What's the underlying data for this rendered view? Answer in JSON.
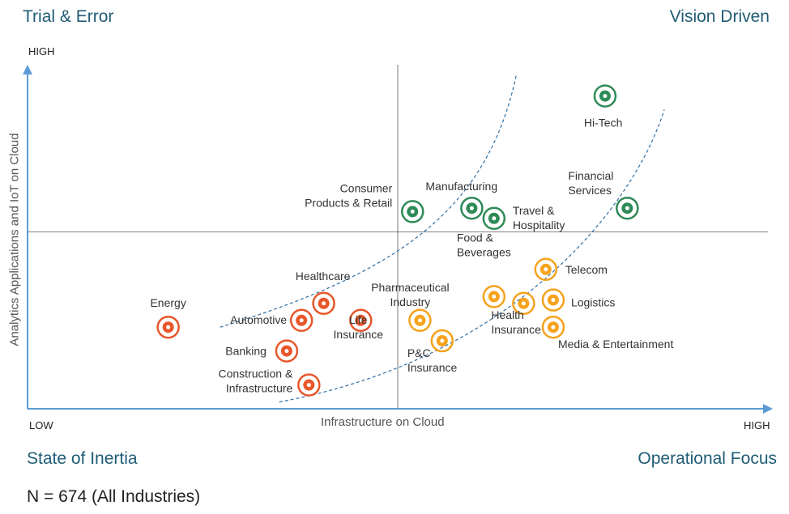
{
  "quadrants": {
    "top_left": "Trial & Error",
    "top_right": "Vision Driven",
    "bottom_left": "State of Inertia",
    "bottom_right": "Operational Focus"
  },
  "axes": {
    "y_label": "Analytics Applications and IoT on Cloud",
    "x_label": "Infrastructure on Cloud",
    "y_high": "HIGH",
    "x_low": "LOW",
    "x_high": "HIGH"
  },
  "footnote": "N = 674 (All Industries)",
  "colors": {
    "quadrant_title": "#1f5c75",
    "axis": "#5b9bd5",
    "low_group": "#e8562a",
    "mid_group": "#f6a21c",
    "high_group": "#2e8b57"
  },
  "chart_data": {
    "type": "scatter",
    "xlabel": "Infrastructure on Cloud",
    "ylabel": "Analytics Applications and IoT on Cloud",
    "xlim": [
      0,
      100
    ],
    "ylim": [
      0,
      100
    ],
    "points": [
      {
        "name": "Hi-Tech",
        "lines": [
          "Hi-Tech"
        ],
        "x": 78,
        "y": 92,
        "group": "high",
        "icon": "chip-icon"
      },
      {
        "name": "Financial Services",
        "lines": [
          "Financial",
          "Services"
        ],
        "x": 81,
        "y": 59,
        "group": "high",
        "icon": "calculator-icon"
      },
      {
        "name": "Consumer Products & Retail",
        "lines": [
          "Consumer",
          "Products & Retail"
        ],
        "x": 52,
        "y": 58,
        "group": "high",
        "icon": "shopping-cart-icon"
      },
      {
        "name": "Manufacturing",
        "lines": [
          "Manufacturing"
        ],
        "x": 60,
        "y": 59,
        "group": "high",
        "icon": "gear-bulb-icon"
      },
      {
        "name": "Travel & Hospitality",
        "lines": [
          "Travel &",
          "Hospitality"
        ],
        "x": 63,
        "y": 56,
        "group": "high",
        "icon": "luggage-icon"
      },
      {
        "name": "Telecom",
        "lines": [
          "Telecom"
        ],
        "x": 70,
        "y": 41,
        "group": "mid",
        "icon": "satellite-dish-icon"
      },
      {
        "name": "Food & Beverages",
        "lines": [
          "Food &",
          "Beverages"
        ],
        "x": 63,
        "y": 33,
        "group": "mid",
        "icon": "cloche-icon"
      },
      {
        "name": "Logistics",
        "lines": [
          "Logistics"
        ],
        "x": 71,
        "y": 32,
        "group": "mid",
        "icon": "truck-icon"
      },
      {
        "name": "Health Insurance",
        "lines": [
          "Health",
          "Insurance"
        ],
        "x": 67,
        "y": 31,
        "group": "mid",
        "icon": "shield-plus-icon"
      },
      {
        "name": "Media & Entertainment",
        "lines": [
          "Media & Entertainment"
        ],
        "x": 71,
        "y": 24,
        "group": "mid",
        "icon": "video-camera-icon"
      },
      {
        "name": "Pharmaceutical Industry",
        "lines": [
          "Pharmaceutical",
          "Industry"
        ],
        "x": 53,
        "y": 26,
        "group": "mid",
        "icon": "pill-icon"
      },
      {
        "name": "P&C Insurance",
        "lines": [
          "P&C",
          "Insurance"
        ],
        "x": 56,
        "y": 20,
        "group": "mid",
        "icon": "car-shield-icon"
      },
      {
        "name": "Energy",
        "lines": [
          "Energy"
        ],
        "x": 19,
        "y": 24,
        "group": "low",
        "icon": "energy-icon"
      },
      {
        "name": "Healthcare",
        "lines": [
          "Healthcare"
        ],
        "x": 40,
        "y": 31,
        "group": "low",
        "icon": "medical-plus-icon"
      },
      {
        "name": "Automotive",
        "lines": [
          "Automotive"
        ],
        "x": 37,
        "y": 26,
        "group": "low",
        "icon": "steering-wheel-icon"
      },
      {
        "name": "Life Insurance",
        "lines": [
          "Life",
          "Insurance"
        ],
        "x": 45,
        "y": 26,
        "group": "low",
        "icon": "umbrella-family-icon"
      },
      {
        "name": "Banking",
        "lines": [
          "Banking"
        ],
        "x": 35,
        "y": 17,
        "group": "low",
        "icon": "bank-icon"
      },
      {
        "name": "Construction & Infrastructure",
        "lines": [
          "Construction &",
          "Infrastructure"
        ],
        "x": 38,
        "y": 7,
        "group": "low",
        "icon": "hard-hat-icon"
      }
    ],
    "reference_lines": {
      "x": 50,
      "y": 52
    },
    "boundaries": [
      {
        "name": "upper-boundary",
        "points": [
          [
            26,
            24
          ],
          [
            50,
            40
          ],
          [
            62,
            58
          ],
          [
            66,
            98
          ]
        ]
      },
      {
        "name": "lower-boundary",
        "points": [
          [
            34,
            2
          ],
          [
            66,
            15
          ],
          [
            82,
            60
          ],
          [
            86,
            88
          ]
        ]
      }
    ],
    "grid": false,
    "legend": "none"
  }
}
